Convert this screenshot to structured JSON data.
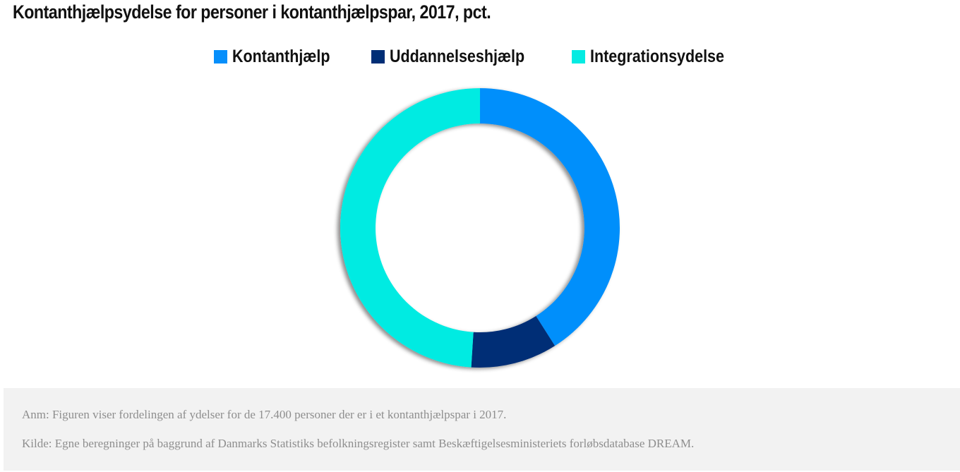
{
  "chart_data": {
    "type": "pie",
    "title": "Kontanthjælpsydelse for personer i kontanthjælpspar, 2017, pct.",
    "donut": true,
    "legend_position": "top-center",
    "categories": [
      "Kontanthjælp",
      "Uddannelseshjælp",
      "Integrationsydelse"
    ],
    "values": [
      41,
      10,
      49
    ],
    "colors": [
      "#068ffb",
      "#002e76",
      "#04ebe2"
    ]
  },
  "notes": {
    "anm": "Anm: Figuren viser fordelingen af ydelser for de 17.400 personer der er i et kontanthjælpspar i 2017.",
    "kilde": "Kilde: Egne beregninger på baggrund af Danmarks Statistiks befolkningsregister samt Beskæftigelsesministeriets forløbsdatabase DREAM."
  }
}
